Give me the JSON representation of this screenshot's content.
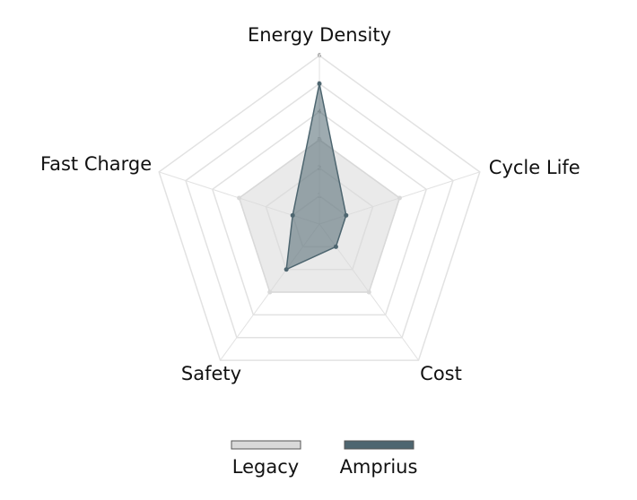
{
  "chart_data": {
    "type": "radar",
    "categories": [
      "Energy Density",
      "Cycle Life",
      "Cost",
      "Safety",
      "Fast Charge"
    ],
    "series": [
      {
        "name": "Legacy",
        "color": "#d9d9d9",
        "values": [
          3,
          3,
          3,
          3,
          3
        ]
      },
      {
        "name": "Amprius",
        "color": "#4e6670",
        "values": [
          5,
          1,
          1,
          2,
          1
        ]
      }
    ],
    "ylim": [
      0,
      6
    ],
    "yticks": [
      1,
      2,
      3,
      4,
      5,
      6
    ],
    "grid": true,
    "legend": "bottom"
  }
}
